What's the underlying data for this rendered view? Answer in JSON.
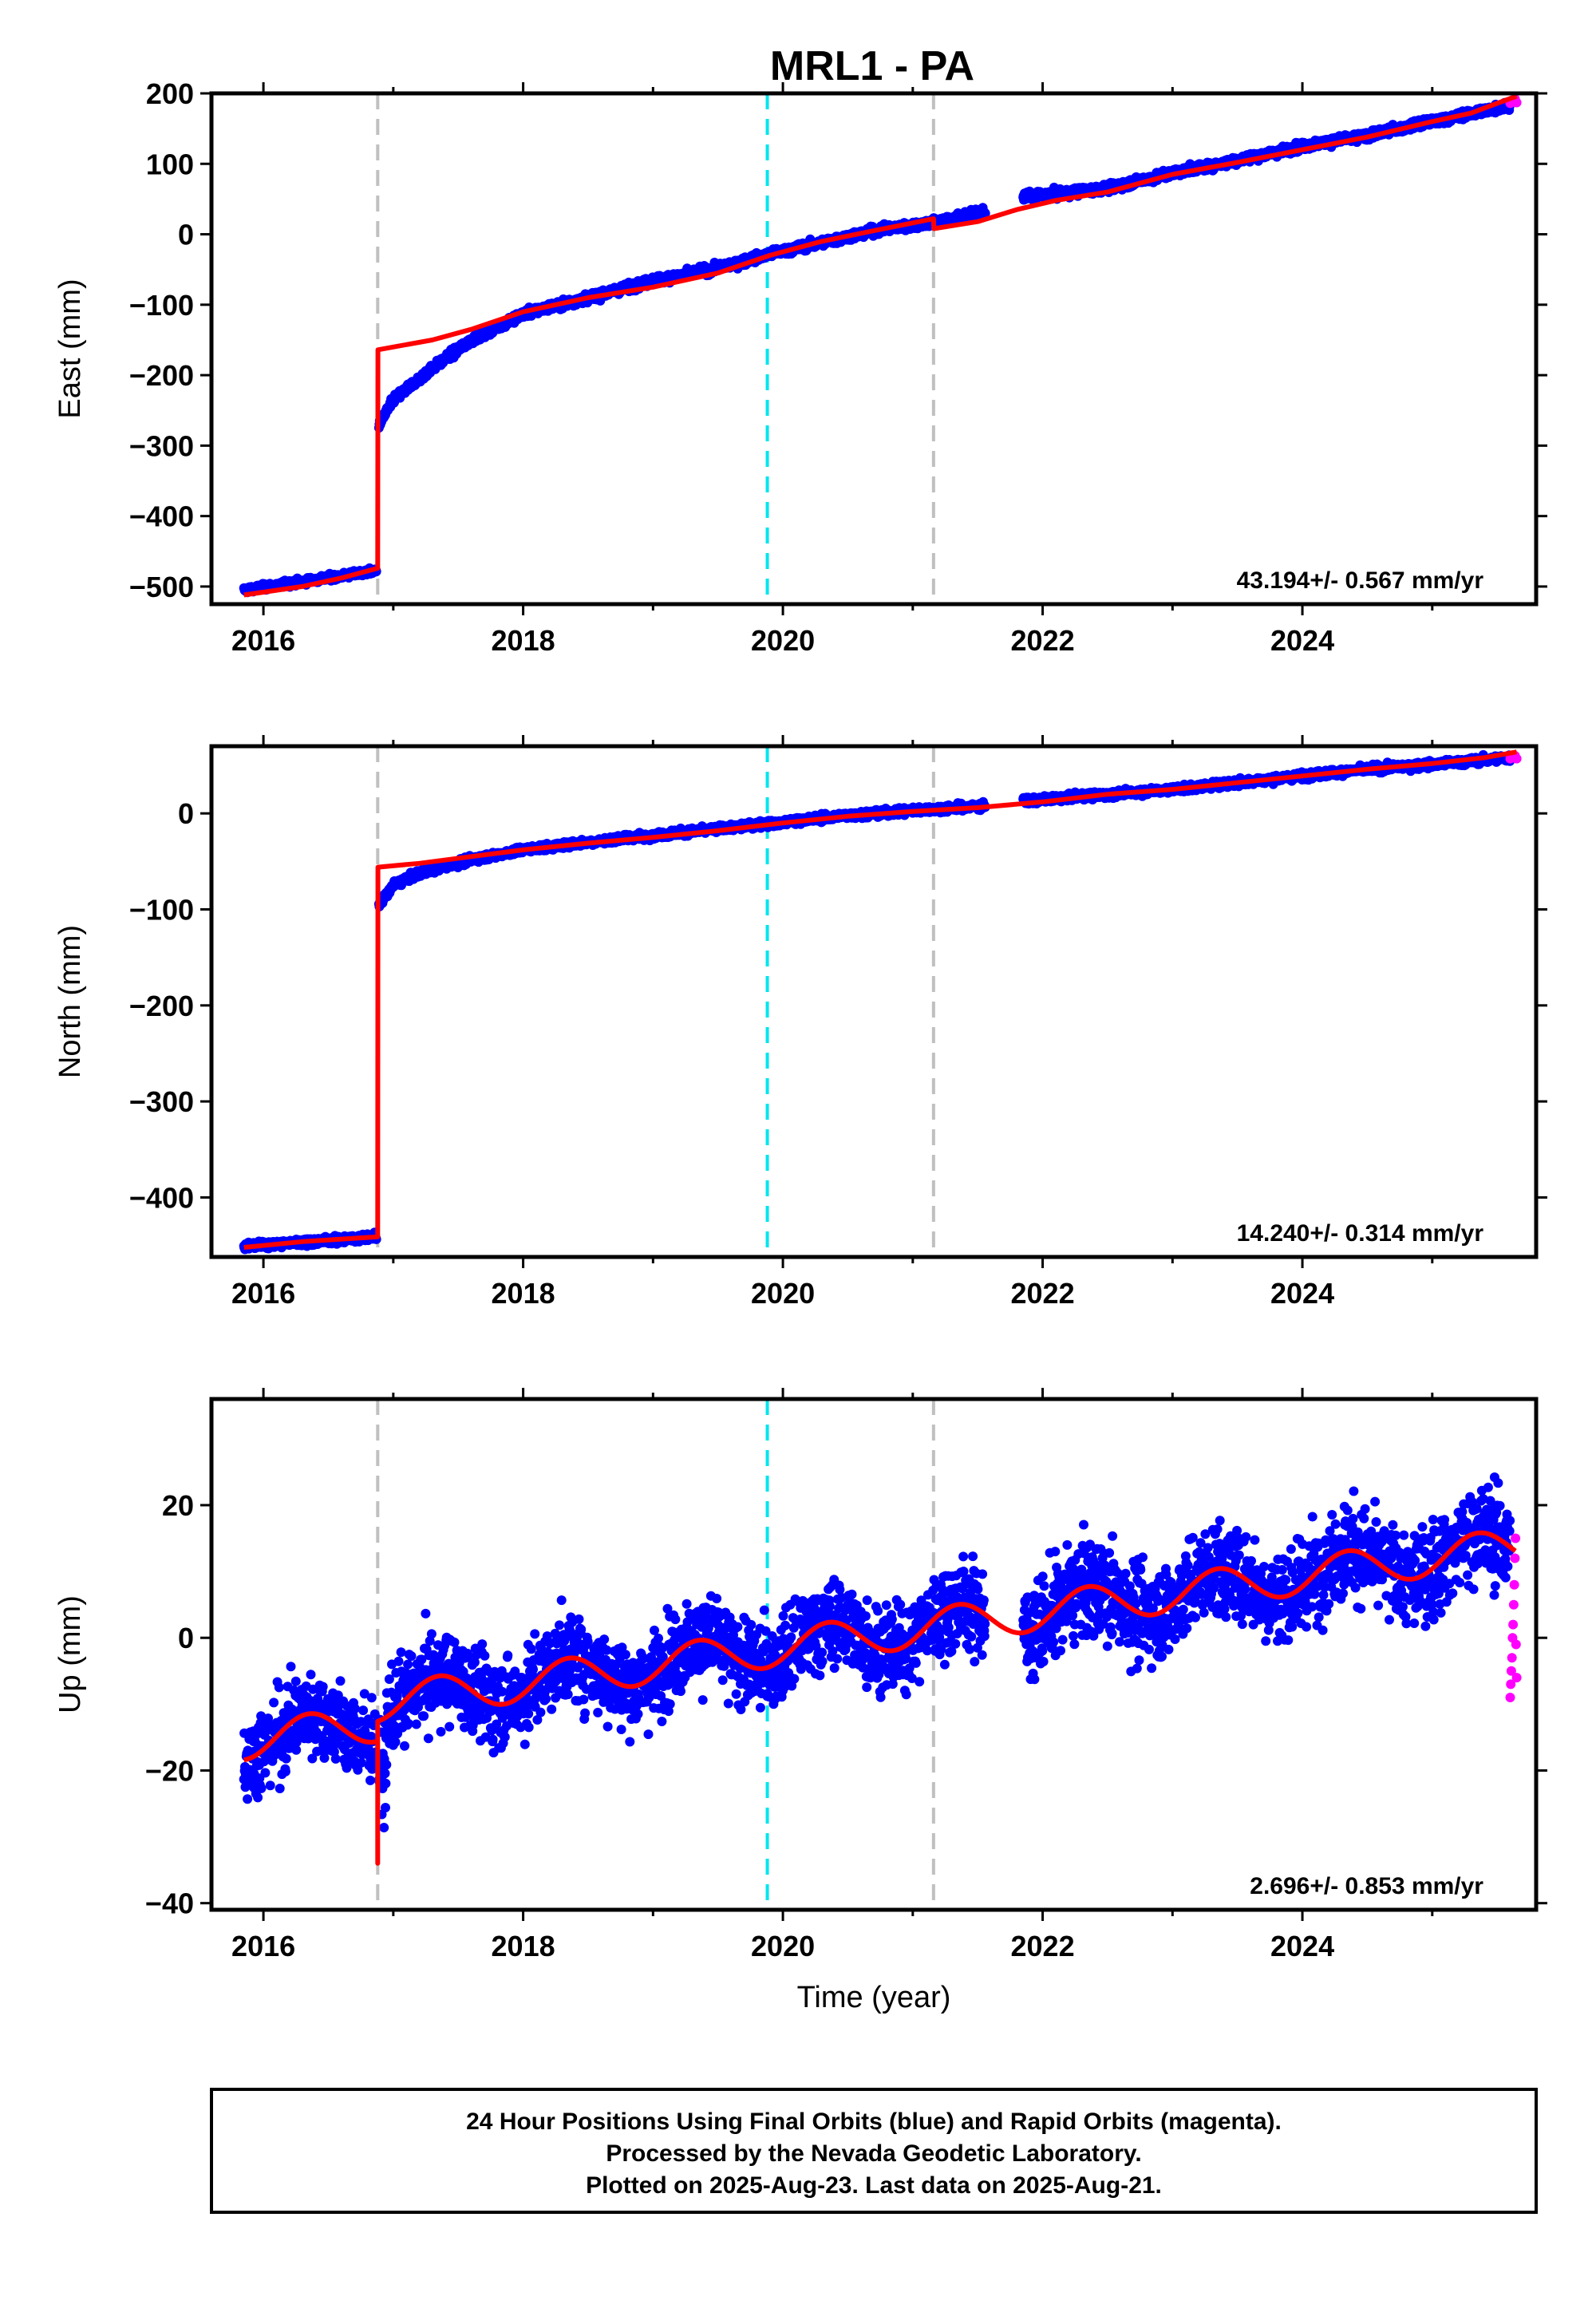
{
  "title": "MRL1 - PA",
  "colors": {
    "final_orbits": "#0000ff",
    "rapid_orbits": "#ff00ff",
    "model": "#ff0000",
    "equipment_change": "#c0c0c0",
    "earthquake": "#00e5ee"
  },
  "chart_data": [
    {
      "type": "scatter",
      "panel": "east",
      "ylabel": "East (mm)",
      "xlabel": "",
      "xlim": [
        2015.6,
        2025.8
      ],
      "ylim": [
        -525,
        200
      ],
      "yticks": [
        -500,
        -400,
        -300,
        -200,
        -100,
        0,
        100,
        200
      ],
      "xticks": [
        2016,
        2018,
        2020,
        2022,
        2024
      ],
      "rate": "43.194+/- 0.567 mm/yr",
      "grid": false,
      "vlines": [
        {
          "x": 2016.88,
          "kind": "equipment_change"
        },
        {
          "x": 2019.88,
          "kind": "earthquake"
        },
        {
          "x": 2021.16,
          "kind": "equipment_change"
        }
      ],
      "model_line": {
        "x": [
          2015.85,
          2016.0,
          2016.3,
          2016.6,
          2016.88,
          2016.882,
          2017.0,
          2017.3,
          2017.6,
          2018.0,
          2018.5,
          2019.0,
          2019.5,
          2019.9,
          2020.3,
          2020.7,
          2021.16,
          2021.162,
          2021.5,
          2021.8,
          2022.1,
          2022.5,
          2023.0,
          2023.5,
          2024.0,
          2024.5,
          2025.0,
          2025.3,
          2025.5,
          2025.65
        ],
        "y": [
          -512,
          -508,
          -500,
          -488,
          -474,
          -164,
          -160,
          -150,
          -135,
          -110,
          -90,
          -75,
          -55,
          -30,
          -10,
          5,
          22,
          8,
          18,
          35,
          48,
          60,
          85,
          102,
          120,
          138,
          160,
          172,
          186,
          196
        ]
      },
      "final_series": {
        "segments": [
          {
            "x0": 2015.85,
            "x1": 2016.87,
            "y0": -505,
            "y1": -478,
            "noise": 3
          },
          {
            "x0": 2016.89,
            "x1": 2021.56,
            "start": -270,
            "trend": [
              [
                2016.89,
                -270
              ],
              [
                2017.0,
                -235
              ],
              [
                2017.3,
                -190
              ],
              [
                2017.6,
                -150
              ],
              [
                2018.0,
                -113
              ],
              [
                2018.5,
                -90
              ],
              [
                2019.0,
                -66
              ],
              [
                2019.5,
                -48
              ],
              [
                2019.9,
                -28
              ],
              [
                2020.3,
                -12
              ],
              [
                2020.7,
                5
              ],
              [
                2021.2,
                18
              ],
              [
                2021.56,
                32
              ]
            ],
            "noise": 4
          },
          {
            "x0": 2021.85,
            "x1": 2025.6,
            "trend": [
              [
                2021.85,
                53
              ],
              [
                2022.5,
                65
              ],
              [
                2023.0,
                87
              ],
              [
                2023.5,
                105
              ],
              [
                2024.0,
                125
              ],
              [
                2024.5,
                140
              ],
              [
                2025.0,
                160
              ],
              [
                2025.6,
                183
              ]
            ],
            "noise": 4
          }
        ]
      },
      "rapid_series": {
        "x0": 2025.6,
        "x1": 2025.65,
        "y": [
          186,
          190,
          188,
          192,
          187
        ]
      }
    },
    {
      "type": "scatter",
      "panel": "north",
      "ylabel": "North (mm)",
      "xlabel": "",
      "xlim": [
        2015.6,
        2025.8
      ],
      "ylim": [
        -462,
        70
      ],
      "yticks": [
        -400,
        -300,
        -200,
        -100,
        0
      ],
      "xticks": [
        2016,
        2018,
        2020,
        2022,
        2024
      ],
      "rate": "14.240+/- 0.314 mm/yr",
      "grid": false,
      "vlines": [
        {
          "x": 2016.88,
          "kind": "equipment_change"
        },
        {
          "x": 2019.88,
          "kind": "earthquake"
        },
        {
          "x": 2021.16,
          "kind": "equipment_change"
        }
      ],
      "model_line": {
        "x": [
          2015.85,
          2016.3,
          2016.88,
          2016.882,
          2017.2,
          2017.6,
          2018.0,
          2018.5,
          2019.0,
          2019.5,
          2020.0,
          2020.5,
          2021.0,
          2021.5,
          2022.0,
          2022.5,
          2023.0,
          2023.5,
          2024.0,
          2024.5,
          2025.0,
          2025.4,
          2025.65
        ],
        "y": [
          -452,
          -446,
          -441,
          -56,
          -52,
          -45,
          -38,
          -31,
          -25,
          -18,
          -10,
          -3,
          2,
          6,
          12,
          20,
          25,
          32,
          39,
          46,
          52,
          58,
          64
        ]
      },
      "final_series": {
        "segments": [
          {
            "x0": 2015.85,
            "x1": 2016.87,
            "y0": -451,
            "y1": -441,
            "noise": 2.5
          },
          {
            "x0": 2016.89,
            "x1": 2021.56,
            "trend": [
              [
                2016.89,
                -95
              ],
              [
                2017.0,
                -75
              ],
              [
                2017.2,
                -62
              ],
              [
                2017.6,
                -48
              ],
              [
                2018.0,
                -38
              ],
              [
                2018.5,
                -30
              ],
              [
                2019.0,
                -23
              ],
              [
                2019.5,
                -16
              ],
              [
                2020.0,
                -9
              ],
              [
                2020.5,
                -2
              ],
              [
                2021.0,
                3
              ],
              [
                2021.56,
                8
              ]
            ],
            "noise": 2.5
          },
          {
            "x0": 2021.85,
            "x1": 2025.6,
            "trend": [
              [
                2021.85,
                13
              ],
              [
                2022.5,
                20
              ],
              [
                2023.0,
                25
              ],
              [
                2023.5,
                32
              ],
              [
                2024.0,
                39
              ],
              [
                2024.5,
                46
              ],
              [
                2025.0,
                51
              ],
              [
                2025.6,
                58
              ]
            ],
            "noise": 2.5
          }
        ]
      },
      "rapid_series": {
        "x0": 2025.6,
        "x1": 2025.65,
        "y": [
          57,
          59,
          58,
          60,
          57
        ]
      }
    },
    {
      "type": "scatter",
      "panel": "up",
      "ylabel": "Up (mm)",
      "xlabel": "Time (year)",
      "xlim": [
        2015.6,
        2025.8
      ],
      "ylim": [
        -41,
        36
      ],
      "yticks": [
        -40,
        -20,
        0,
        20
      ],
      "xticks": [
        2016,
        2018,
        2020,
        2022,
        2024
      ],
      "rate": "2.696+/- 0.853 mm/yr",
      "grid": false,
      "vlines": [
        {
          "x": 2016.88,
          "kind": "equipment_change"
        },
        {
          "x": 2019.88,
          "kind": "earthquake"
        },
        {
          "x": 2021.16,
          "kind": "equipment_change"
        }
      ],
      "model_line": {
        "rate": 2.696,
        "amplitude": 2.8,
        "offset_ref": 2016.0,
        "offset_value": -15.2,
        "step_x": 2016.88,
        "step_low": -34,
        "step_value": 3.0,
        "x0": 2015.85,
        "x1": 2025.65
      },
      "final_series": {
        "segments": [
          {
            "x0": 2015.85,
            "x1": 2016.87,
            "noise": 4.5
          },
          {
            "x0": 2016.89,
            "x1": 2021.56,
            "noise": 4.5
          },
          {
            "x0": 2021.85,
            "x1": 2025.6,
            "noise": 5
          }
        ]
      },
      "rapid_series": {
        "x0": 2025.6,
        "x1": 2025.65,
        "y": [
          -9,
          -7,
          -5,
          -3,
          0,
          2,
          5,
          8,
          12,
          15,
          -1,
          -6
        ]
      }
    }
  ],
  "footer": {
    "line1": "24 Hour Positions Using Final Orbits (blue) and Rapid Orbits (magenta).",
    "line2": "Processed by the Nevada Geodetic Laboratory.",
    "line3": "Plotted on 2025-Aug-23. Last data on 2025-Aug-21."
  }
}
